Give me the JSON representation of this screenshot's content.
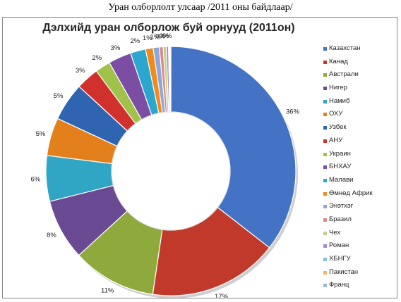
{
  "caption": "Уран олборлолт улсаар /2011 оны байдлаар/",
  "chart_data": {
    "type": "donut",
    "title": "Дэлхийд уран олборлож буй орнууд (2011он)",
    "legend_position": "right",
    "series": [
      {
        "name": "Казахстан",
        "value": 36,
        "label": "36%",
        "color": "#4472c4"
      },
      {
        "name": "Канад",
        "value": 17,
        "label": "17%",
        "color": "#c0392b"
      },
      {
        "name": "Австрали",
        "value": 11,
        "label": "11%",
        "color": "#8faa3c"
      },
      {
        "name": "Нигер",
        "value": 8,
        "label": "8%",
        "color": "#6b4a94"
      },
      {
        "name": "Намиб",
        "value": 6,
        "label": "6%",
        "color": "#31a5c4"
      },
      {
        "name": "ОХУ",
        "value": 5,
        "label": "5%",
        "color": "#e4801c"
      },
      {
        "name": "Узбек",
        "value": 5,
        "label": "5%",
        "color": "#2e64b0"
      },
      {
        "name": "АНУ",
        "value": 3,
        "label": "3%",
        "color": "#d0312d"
      },
      {
        "name": "Украин",
        "value": 2,
        "label": "2%",
        "color": "#a1c24a"
      },
      {
        "name": "БНХАУ",
        "value": 3,
        "label": "3%",
        "color": "#7b4ea3"
      },
      {
        "name": "Малави",
        "value": 2,
        "label": "2%",
        "color": "#2aa6cf"
      },
      {
        "name": "Өмнөд Африк",
        "value": 1,
        "label": "1%",
        "color": "#f08a1c"
      },
      {
        "name": "Энэтхэг",
        "value": 0.8,
        "label": "1%",
        "color": "#8ea6d8"
      },
      {
        "name": "Бразил",
        "value": 0.5,
        "label": "0%",
        "color": "#d98a89"
      },
      {
        "name": "Чех",
        "value": 0.4,
        "label": "0%",
        "color": "#bfd08a"
      },
      {
        "name": "Роман",
        "value": 0.3,
        "label": "0%",
        "color": "#a68cc4"
      },
      {
        "name": "ХБНГУ",
        "value": 0.1,
        "label": "",
        "color": "#7fc4dc"
      },
      {
        "name": "Пакистан",
        "value": 0.1,
        "label": "",
        "color": "#f5b36b"
      },
      {
        "name": "Франц",
        "value": 0.1,
        "label": "",
        "color": "#9eb6e0"
      }
    ]
  }
}
